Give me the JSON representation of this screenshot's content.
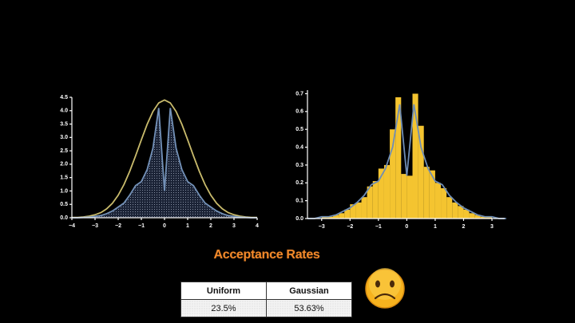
{
  "chart_data": [
    {
      "type": "line",
      "x": [
        -4,
        -3.75,
        -3.5,
        -3.25,
        -3,
        -2.75,
        -2.5,
        -2.25,
        -2,
        -1.75,
        -1.5,
        -1.25,
        -1,
        -0.75,
        -0.5,
        -0.25,
        0,
        0.25,
        0.5,
        0.75,
        1,
        1.25,
        1.5,
        1.75,
        2,
        2.25,
        2.5,
        2.75,
        3,
        3.25,
        3.5,
        3.75,
        4
      ],
      "series": [
        {
          "color": "#c9bb6c",
          "values": [
            0.01,
            0.01,
            0.03,
            0.06,
            0.11,
            0.19,
            0.33,
            0.54,
            0.84,
            1.24,
            1.74,
            2.31,
            2.91,
            3.49,
            3.97,
            4.29,
            4.4,
            4.29,
            3.97,
            3.49,
            2.91,
            2.31,
            1.74,
            1.24,
            0.84,
            0.54,
            0.33,
            0.19,
            0.11,
            0.06,
            0.03,
            0.01,
            0.01
          ]
        },
        {
          "color": "#7391b8",
          "fill": true,
          "values": [
            0,
            0,
            0.01,
            0.02,
            0.05,
            0.08,
            0.15,
            0.25,
            0.4,
            0.55,
            0.85,
            1.2,
            1.35,
            1.8,
            2.6,
            4.1,
            1.0,
            4.1,
            2.6,
            1.8,
            1.35,
            1.2,
            0.85,
            0.55,
            0.4,
            0.25,
            0.15,
            0.08,
            0.05,
            0.02,
            0.01,
            0,
            0
          ]
        }
      ],
      "xlim": [
        -4,
        4
      ],
      "xticks": [
        {
          "value": -4,
          "label": "−4"
        },
        {
          "value": -3,
          "label": "−3"
        },
        {
          "value": -2,
          "label": "−2"
        },
        {
          "value": -1,
          "label": "−1"
        },
        0,
        1,
        2,
        3,
        4
      ],
      "ylim": [
        0,
        4.5
      ],
      "yticks": [
        {
          "value": 0,
          "label": "0.0"
        },
        {
          "value": 0.5,
          "label": "0.5"
        },
        {
          "value": 1,
          "label": "1.0"
        },
        {
          "value": 1.5,
          "label": "1.5"
        },
        {
          "value": 2,
          "label": "2.0"
        },
        {
          "value": 2.5,
          "label": "2.5"
        },
        {
          "value": 3,
          "label": "3.0"
        },
        {
          "value": 3.5,
          "label": "3.5"
        },
        {
          "value": 4,
          "label": "4.0"
        },
        {
          "value": 4.5,
          "label": "4.5"
        }
      ]
    },
    {
      "type": "histogram",
      "bins": [
        -3,
        -2.8,
        -2.6,
        -2.4,
        -2.2,
        -2,
        -1.8,
        -1.6,
        -1.4,
        -1.2,
        -1,
        -0.8,
        -0.6,
        -0.4,
        -0.2,
        0,
        0.2,
        0.4,
        0.6,
        0.8,
        1,
        1.2,
        1.4,
        1.6,
        1.8,
        2,
        2.2,
        2.4,
        2.6,
        2.8,
        3
      ],
      "counts": [
        0.01,
        0.01,
        0.02,
        0.03,
        0.05,
        0.08,
        0.09,
        0.12,
        0.18,
        0.21,
        0.28,
        0.3,
        0.5,
        0.68,
        0.25,
        0.24,
        0.7,
        0.52,
        0.29,
        0.27,
        0.2,
        0.17,
        0.12,
        0.09,
        0.07,
        0.05,
        0.03,
        0.02,
        0.01,
        0.01
      ],
      "color": "#f4c430",
      "curve": {
        "color": "#6f8db5",
        "x": [
          -3.5,
          -3.25,
          -3,
          -2.75,
          -2.5,
          -2.25,
          -2,
          -1.75,
          -1.5,
          -1.25,
          -1,
          -0.75,
          -0.5,
          -0.25,
          0,
          0.25,
          0.5,
          0.75,
          1,
          1.25,
          1.5,
          1.75,
          2,
          2.25,
          2.5,
          2.75,
          3,
          3.25,
          3.5
        ],
        "values": [
          0,
          0,
          0.01,
          0.01,
          0.02,
          0.04,
          0.06,
          0.09,
          0.13,
          0.19,
          0.21,
          0.28,
          0.4,
          0.64,
          0.24,
          0.64,
          0.4,
          0.28,
          0.21,
          0.19,
          0.13,
          0.09,
          0.06,
          0.04,
          0.02,
          0.01,
          0.01,
          0,
          0
        ]
      },
      "xlim": [
        -3.5,
        3.45
      ],
      "xticks": [
        {
          "value": -3,
          "label": "−3"
        },
        {
          "value": -2,
          "label": "−2"
        },
        {
          "value": -1,
          "label": "−1"
        },
        0,
        1,
        2,
        3
      ],
      "ylim": [
        0,
        0.72
      ],
      "yticks": [
        {
          "value": 0,
          "label": "0.0"
        },
        {
          "value": 0.1,
          "label": "0.1"
        },
        {
          "value": 0.2,
          "label": "0.2"
        },
        {
          "value": 0.3,
          "label": "0.3"
        },
        {
          "value": 0.4,
          "label": "0.4"
        },
        {
          "value": 0.5,
          "label": "0.5"
        },
        {
          "value": 0.6,
          "label": "0.6"
        },
        {
          "value": 0.7,
          "label": "0.7"
        }
      ]
    }
  ],
  "table": {
    "title": "Acceptance Rates",
    "columns": [
      "Uniform",
      "Gaussian"
    ],
    "rows": [
      [
        "23.5%",
        "53.63%"
      ]
    ]
  }
}
